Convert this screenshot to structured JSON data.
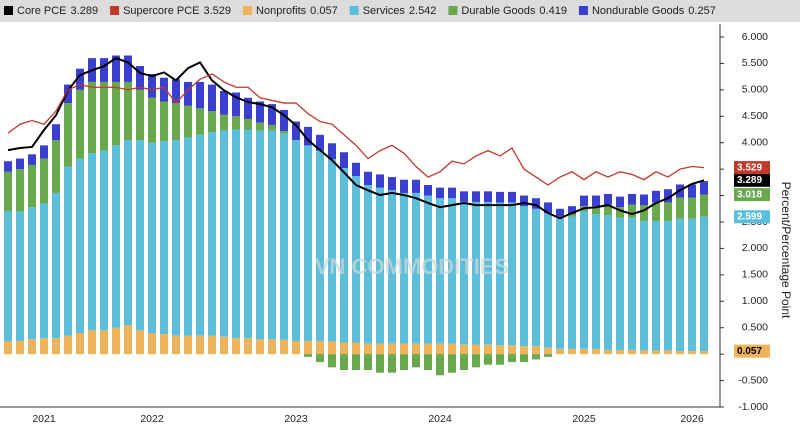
{
  "chart_data": {
    "type": "stacked_bar_line",
    "categories": [
      null,
      null,
      null,
      "2021",
      null,
      null,
      null,
      null,
      null,
      null,
      null,
      null,
      "2022",
      null,
      null,
      null,
      null,
      null,
      null,
      null,
      null,
      null,
      null,
      null,
      "2023",
      null,
      null,
      null,
      null,
      null,
      null,
      null,
      null,
      null,
      null,
      null,
      "2024",
      null,
      null,
      null,
      null,
      null,
      null,
      null,
      null,
      null,
      null,
      null,
      "2025",
      null,
      null,
      null,
      null,
      null,
      null,
      null,
      null,
      "2026",
      null
    ],
    "ylim": [
      -1,
      6
    ],
    "yticks": [
      {
        "value": -1,
        "label": "-1.000"
      },
      {
        "value": -0.5,
        "label": "-0.500"
      },
      {
        "value": 0,
        "label": "0.000"
      },
      {
        "value": 0.5,
        "label": "0.500"
      },
      {
        "value": 1,
        "label": "1.000"
      },
      {
        "value": 1.5,
        "label": "1.500"
      },
      {
        "value": 2,
        "label": "2.000"
      },
      {
        "value": 2.5,
        "label": "2.500"
      },
      {
        "value": 3,
        "label": "3.000"
      },
      {
        "value": 3.5,
        "label": "3.500"
      },
      {
        "value": 4,
        "label": "4.000"
      },
      {
        "value": 4.5,
        "label": "4.500"
      },
      {
        "value": 5,
        "label": "5.000"
      },
      {
        "value": 5.5,
        "label": "5.500"
      },
      {
        "value": 6,
        "label": "6.000"
      }
    ],
    "ylabel": "Percent/Percentage Point",
    "watermark": "VN COMMODITIES",
    "series": [
      {
        "name": "Core PCE",
        "kind": "line",
        "color": "#000000",
        "legend_value": 3.289,
        "tag": 3.289,
        "values": [
          3.86,
          3.9,
          3.92,
          4.24,
          4.52,
          4.99,
          5.28,
          5.37,
          5.45,
          5.6,
          5.52,
          5.32,
          5.26,
          5.33,
          5.18,
          5.41,
          5.52,
          5.18,
          4.99,
          4.86,
          4.77,
          4.73,
          4.67,
          4.52,
          4.33,
          4.05,
          3.86,
          3.67,
          3.44,
          3.2,
          3.1,
          3.01,
          3.05,
          3.01,
          2.95,
          2.86,
          2.78,
          2.82,
          2.86,
          2.82,
          2.82,
          2.82,
          2.82,
          2.86,
          2.82,
          2.67,
          2.57,
          2.67,
          2.76,
          2.78,
          2.82,
          2.72,
          2.65,
          2.72,
          2.86,
          2.95,
          3.1,
          3.22,
          3.289
        ]
      },
      {
        "name": "Supercore PCE",
        "kind": "line",
        "color": "#c0392b",
        "legend_value": 3.529,
        "tag": 3.529,
        "values": [
          4.18,
          4.35,
          4.42,
          4.35,
          4.6,
          5.0,
          5.1,
          5.05,
          5.05,
          5.05,
          5.0,
          5.05,
          5.0,
          5.05,
          4.75,
          5.0,
          5.2,
          5.3,
          5.15,
          5.05,
          5.05,
          4.85,
          4.8,
          4.75,
          4.75,
          4.55,
          4.4,
          4.35,
          4.15,
          3.95,
          3.7,
          3.85,
          3.95,
          3.8,
          3.55,
          3.35,
          3.45,
          3.65,
          3.6,
          3.75,
          3.85,
          3.75,
          3.9,
          3.5,
          3.35,
          3.2,
          3.35,
          3.45,
          3.3,
          3.45,
          3.35,
          3.45,
          3.4,
          3.3,
          3.45,
          3.35,
          3.5,
          3.55,
          3.529
        ]
      },
      {
        "name": "Nonprofits",
        "kind": "bar",
        "color": "#efb45a",
        "legend_value": 0.057,
        "tag": 0.057,
        "values": [
          0.25,
          0.25,
          0.28,
          0.3,
          0.3,
          0.35,
          0.4,
          0.45,
          0.45,
          0.5,
          0.55,
          0.45,
          0.4,
          0.38,
          0.35,
          0.35,
          0.35,
          0.35,
          0.33,
          0.3,
          0.3,
          0.28,
          0.28,
          0.27,
          0.25,
          0.25,
          0.25,
          0.24,
          0.22,
          0.22,
          0.2,
          0.2,
          0.2,
          0.2,
          0.2,
          0.2,
          0.2,
          0.2,
          0.18,
          0.18,
          0.18,
          0.17,
          0.17,
          0.15,
          0.15,
          0.12,
          0.1,
          0.1,
          0.1,
          0.1,
          0.08,
          0.08,
          0.08,
          0.07,
          0.07,
          0.07,
          0.06,
          0.06,
          0.057
        ]
      },
      {
        "name": "Services",
        "kind": "bar",
        "color": "#5bbfdc",
        "legend_value": 2.542,
        "tag": 2.599,
        "values": [
          2.45,
          2.45,
          2.5,
          2.55,
          2.75,
          3.2,
          3.3,
          3.35,
          3.4,
          3.45,
          3.5,
          3.6,
          3.6,
          3.65,
          3.7,
          3.75,
          3.8,
          3.85,
          3.9,
          3.95,
          3.95,
          3.95,
          3.95,
          3.9,
          3.8,
          3.7,
          3.6,
          3.45,
          3.3,
          3.15,
          3.0,
          2.95,
          2.9,
          2.85,
          2.85,
          2.8,
          2.75,
          2.75,
          2.7,
          2.7,
          2.7,
          2.7,
          2.7,
          2.65,
          2.6,
          2.55,
          2.5,
          2.5,
          2.6,
          2.55,
          2.55,
          2.5,
          2.5,
          2.45,
          2.45,
          2.45,
          2.5,
          2.5,
          2.542
        ]
      },
      {
        "name": "Durable Goods",
        "kind": "bar",
        "color": "#6aa84f",
        "legend_value": 0.419,
        "tag": 3.018,
        "values": [
          0.75,
          0.8,
          0.8,
          0.85,
          1.0,
          1.2,
          1.3,
          1.35,
          1.3,
          1.2,
          1.1,
          0.95,
          0.85,
          0.75,
          0.7,
          0.6,
          0.5,
          0.4,
          0.3,
          0.25,
          0.2,
          0.15,
          0.1,
          0.05,
          0.0,
          -0.05,
          -0.15,
          -0.25,
          -0.3,
          -0.3,
          -0.3,
          -0.35,
          -0.35,
          -0.3,
          -0.25,
          -0.3,
          -0.4,
          -0.35,
          -0.3,
          -0.25,
          -0.2,
          -0.2,
          -0.15,
          -0.15,
          -0.1,
          -0.05,
          0.0,
          0.05,
          0.1,
          0.15,
          0.2,
          0.2,
          0.25,
          0.3,
          0.35,
          0.35,
          0.4,
          0.4,
          0.419
        ]
      },
      {
        "name": "Nondurable Goods",
        "kind": "bar",
        "color": "#3a3fd0",
        "legend_value": 0.257,
        "values": [
          0.2,
          0.2,
          0.2,
          0.25,
          0.3,
          0.35,
          0.4,
          0.45,
          0.45,
          0.5,
          0.5,
          0.45,
          0.45,
          0.45,
          0.45,
          0.45,
          0.5,
          0.5,
          0.45,
          0.45,
          0.4,
          0.4,
          0.4,
          0.4,
          0.35,
          0.35,
          0.3,
          0.3,
          0.3,
          0.25,
          0.25,
          0.25,
          0.25,
          0.25,
          0.25,
          0.2,
          0.2,
          0.2,
          0.2,
          0.2,
          0.2,
          0.2,
          0.2,
          0.2,
          0.2,
          0.2,
          0.15,
          0.15,
          0.2,
          0.2,
          0.2,
          0.2,
          0.2,
          0.2,
          0.22,
          0.25,
          0.25,
          0.25,
          0.257
        ]
      }
    ]
  }
}
